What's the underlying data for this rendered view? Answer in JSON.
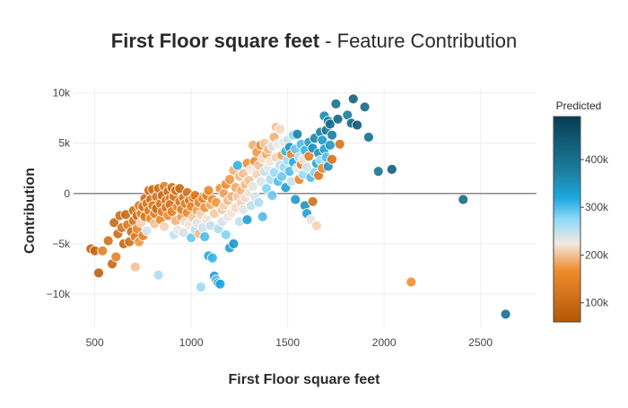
{
  "chart_data": {
    "type": "scatter",
    "title_bold": "First Floor square feet",
    "title_rest": " - Feature Contribution",
    "xlabel": "First Floor square feet",
    "ylabel": "Contribution",
    "xlim": [
      390,
      2790
    ],
    "ylim": [
      -13300,
      10500
    ],
    "x_ticks": [
      500,
      1000,
      1500,
      2000,
      2500
    ],
    "x_tick_labels": [
      "500",
      "1000",
      "1500",
      "2000",
      "2500"
    ],
    "y_ticks": [
      10000,
      5000,
      0,
      -5000,
      -10000
    ],
    "y_tick_labels": [
      "10k",
      "5k",
      "0",
      "−5k",
      "−10k"
    ],
    "zero_line": true,
    "grid": true,
    "colorbar": {
      "title": "Predicted",
      "range": [
        60000,
        490000
      ],
      "ticks": [
        100000,
        200000,
        300000,
        400000
      ],
      "tick_labels": [
        "100k",
        "200k",
        "300k",
        "400k"
      ],
      "stops": [
        {
          "offset": 0.0,
          "color": "#b35806"
        },
        {
          "offset": 0.25,
          "color": "#f08b2c"
        },
        {
          "offset": 0.38,
          "color": "#f4e8e0"
        },
        {
          "offset": 0.5,
          "color": "#90d8f8"
        },
        {
          "offset": 0.6,
          "color": "#1fa9df"
        },
        {
          "offset": 0.75,
          "color": "#1a7a9a"
        },
        {
          "offset": 1.0,
          "color": "#083d54"
        }
      ]
    },
    "points": [
      {
        "x": 480,
        "y": -5500,
        "c": 85000
      },
      {
        "x": 500,
        "y": -5700,
        "c": 90000
      },
      {
        "x": 520,
        "y": -7900,
        "c": 80000
      },
      {
        "x": 540,
        "y": -5700,
        "c": 145000
      },
      {
        "x": 570,
        "y": -4700,
        "c": 110000
      },
      {
        "x": 590,
        "y": -7000,
        "c": 95000
      },
      {
        "x": 600,
        "y": -2900,
        "c": 95000
      },
      {
        "x": 610,
        "y": -6300,
        "c": 150000
      },
      {
        "x": 620,
        "y": -4000,
        "c": 100000
      },
      {
        "x": 630,
        "y": -2200,
        "c": 105000
      },
      {
        "x": 640,
        "y": -3400,
        "c": 120000
      },
      {
        "x": 650,
        "y": -5000,
        "c": 90000
      },
      {
        "x": 660,
        "y": -2100,
        "c": 95000
      },
      {
        "x": 670,
        "y": -3100,
        "c": 130000
      },
      {
        "x": 680,
        "y": -4800,
        "c": 110000
      },
      {
        "x": 690,
        "y": -3800,
        "c": 100000
      },
      {
        "x": 700,
        "y": -1700,
        "c": 115000
      },
      {
        "x": 700,
        "y": -2700,
        "c": 120000
      },
      {
        "x": 710,
        "y": -4300,
        "c": 125000
      },
      {
        "x": 710,
        "y": -7300,
        "c": 200000
      },
      {
        "x": 720,
        "y": -3500,
        "c": 160000
      },
      {
        "x": 720,
        "y": -2200,
        "c": 100000
      },
      {
        "x": 730,
        "y": -1200,
        "c": 135000
      },
      {
        "x": 730,
        "y": -4800,
        "c": 175000
      },
      {
        "x": 740,
        "y": -2000,
        "c": 150000
      },
      {
        "x": 740,
        "y": -2900,
        "c": 210000
      },
      {
        "x": 750,
        "y": -1300,
        "c": 115000
      },
      {
        "x": 750,
        "y": -4200,
        "c": 140000
      },
      {
        "x": 760,
        "y": -500,
        "c": 100000
      },
      {
        "x": 760,
        "y": -2300,
        "c": 125000
      },
      {
        "x": 770,
        "y": -1000,
        "c": 130000
      },
      {
        "x": 770,
        "y": -3700,
        "c": 240000
      },
      {
        "x": 780,
        "y": 300,
        "c": 95000
      },
      {
        "x": 780,
        "y": -1700,
        "c": 120000
      },
      {
        "x": 790,
        "y": -2500,
        "c": 160000
      },
      {
        "x": 790,
        "y": -600,
        "c": 110000
      },
      {
        "x": 800,
        "y": 400,
        "c": 105000
      },
      {
        "x": 800,
        "y": -1200,
        "c": 135000
      },
      {
        "x": 810,
        "y": -3000,
        "c": 200000
      },
      {
        "x": 810,
        "y": -2000,
        "c": 145000
      },
      {
        "x": 820,
        "y": -300,
        "c": 125000
      },
      {
        "x": 820,
        "y": -1500,
        "c": 100000
      },
      {
        "x": 830,
        "y": -8100,
        "c": 260000
      },
      {
        "x": 830,
        "y": 500,
        "c": 110000
      },
      {
        "x": 840,
        "y": -1000,
        "c": 120000
      },
      {
        "x": 840,
        "y": -2600,
        "c": 155000
      },
      {
        "x": 850,
        "y": -200,
        "c": 95000
      },
      {
        "x": 850,
        "y": -1800,
        "c": 130000
      },
      {
        "x": 860,
        "y": 700,
        "c": 140000
      },
      {
        "x": 860,
        "y": -3300,
        "c": 210000
      },
      {
        "x": 870,
        "y": -700,
        "c": 115000
      },
      {
        "x": 870,
        "y": -1400,
        "c": 125000
      },
      {
        "x": 880,
        "y": 200,
        "c": 100000
      },
      {
        "x": 880,
        "y": -2200,
        "c": 165000
      },
      {
        "x": 890,
        "y": -500,
        "c": 135000
      },
      {
        "x": 890,
        "y": -1100,
        "c": 120000
      },
      {
        "x": 900,
        "y": 600,
        "c": 110000
      },
      {
        "x": 900,
        "y": -1800,
        "c": 150000
      },
      {
        "x": 910,
        "y": -4100,
        "c": 250000
      },
      {
        "x": 910,
        "y": -300,
        "c": 130000
      },
      {
        "x": 920,
        "y": -2700,
        "c": 190000
      },
      {
        "x": 920,
        "y": 300,
        "c": 120000
      },
      {
        "x": 930,
        "y": -1300,
        "c": 140000
      },
      {
        "x": 930,
        "y": -3600,
        "c": 230000
      },
      {
        "x": 940,
        "y": -800,
        "c": 125000
      },
      {
        "x": 940,
        "y": 500,
        "c": 100000
      },
      {
        "x": 950,
        "y": -2300,
        "c": 175000
      },
      {
        "x": 950,
        "y": -1600,
        "c": 145000
      },
      {
        "x": 960,
        "y": -400,
        "c": 115000
      },
      {
        "x": 960,
        "y": -3900,
        "c": 240000
      },
      {
        "x": 970,
        "y": -1000,
        "c": 135000
      },
      {
        "x": 970,
        "y": -2800,
        "c": 215000
      },
      {
        "x": 980,
        "y": 100,
        "c": 110000
      },
      {
        "x": 980,
        "y": -1900,
        "c": 160000
      },
      {
        "x": 990,
        "y": -700,
        "c": 130000
      },
      {
        "x": 990,
        "y": -3100,
        "c": 220000
      },
      {
        "x": 1000,
        "y": -1300,
        "c": 150000
      },
      {
        "x": 1000,
        "y": -4400,
        "c": 290000
      },
      {
        "x": 1010,
        "y": -400,
        "c": 140000
      },
      {
        "x": 1010,
        "y": -2400,
        "c": 200000
      },
      {
        "x": 1020,
        "y": -3600,
        "c": 255000
      },
      {
        "x": 1020,
        "y": -200,
        "c": 125000
      },
      {
        "x": 1030,
        "y": -1700,
        "c": 180000
      },
      {
        "x": 1030,
        "y": -2900,
        "c": 235000
      },
      {
        "x": 1040,
        "y": -900,
        "c": 145000
      },
      {
        "x": 1040,
        "y": -4000,
        "c": 195000
      },
      {
        "x": 1050,
        "y": -9300,
        "c": 270000
      },
      {
        "x": 1050,
        "y": -2100,
        "c": 210000
      },
      {
        "x": 1060,
        "y": -500,
        "c": 155000
      },
      {
        "x": 1060,
        "y": -3400,
        "c": 245000
      },
      {
        "x": 1070,
        "y": -1400,
        "c": 170000
      },
      {
        "x": 1070,
        "y": -4300,
        "c": 300000
      },
      {
        "x": 1080,
        "y": -200,
        "c": 150000
      },
      {
        "x": 1080,
        "y": -2600,
        "c": 220000
      },
      {
        "x": 1090,
        "y": -6200,
        "c": 320000
      },
      {
        "x": 1090,
        "y": 300,
        "c": 160000
      },
      {
        "x": 1100,
        "y": -1100,
        "c": 185000
      },
      {
        "x": 1100,
        "y": -3200,
        "c": 250000
      },
      {
        "x": 1110,
        "y": -6400,
        "c": 310000
      },
      {
        "x": 1110,
        "y": -600,
        "c": 165000
      },
      {
        "x": 1120,
        "y": -8200,
        "c": 330000
      },
      {
        "x": 1120,
        "y": -2000,
        "c": 205000
      },
      {
        "x": 1130,
        "y": -8600,
        "c": 300000
      },
      {
        "x": 1130,
        "y": -900,
        "c": 175000
      },
      {
        "x": 1140,
        "y": -8900,
        "c": 340000
      },
      {
        "x": 1140,
        "y": -3500,
        "c": 260000
      },
      {
        "x": 1150,
        "y": -9000,
        "c": 320000
      },
      {
        "x": 1150,
        "y": 500,
        "c": 170000
      },
      {
        "x": 1160,
        "y": -1600,
        "c": 200000
      },
      {
        "x": 1160,
        "y": -2800,
        "c": 240000
      },
      {
        "x": 1170,
        "y": 0,
        "c": 180000
      },
      {
        "x": 1170,
        "y": -1200,
        "c": 210000
      },
      {
        "x": 1180,
        "y": -4100,
        "c": 280000
      },
      {
        "x": 1180,
        "y": 900,
        "c": 165000
      },
      {
        "x": 1190,
        "y": -700,
        "c": 195000
      },
      {
        "x": 1190,
        "y": -2300,
        "c": 230000
      },
      {
        "x": 1200,
        "y": -5400,
        "c": 330000
      },
      {
        "x": 1200,
        "y": 1400,
        "c": 175000
      },
      {
        "x": 1210,
        "y": -300,
        "c": 190000
      },
      {
        "x": 1210,
        "y": -1900,
        "c": 220000
      },
      {
        "x": 1220,
        "y": 2300,
        "c": 190000
      },
      {
        "x": 1220,
        "y": -5000,
        "c": 340000
      },
      {
        "x": 1230,
        "y": 600,
        "c": 185000
      },
      {
        "x": 1230,
        "y": -1400,
        "c": 215000
      },
      {
        "x": 1240,
        "y": 2800,
        "c": 310000
      },
      {
        "x": 1240,
        "y": -300,
        "c": 205000
      },
      {
        "x": 1250,
        "y": 1700,
        "c": 195000
      },
      {
        "x": 1250,
        "y": -2800,
        "c": 250000
      },
      {
        "x": 1260,
        "y": 300,
        "c": 190000
      },
      {
        "x": 1260,
        "y": -900,
        "c": 210000
      },
      {
        "x": 1270,
        "y": 2000,
        "c": 200000
      },
      {
        "x": 1270,
        "y": -1600,
        "c": 235000
      },
      {
        "x": 1280,
        "y": 900,
        "c": 195000
      },
      {
        "x": 1280,
        "y": -400,
        "c": 215000
      },
      {
        "x": 1290,
        "y": 3000,
        "c": 170000
      },
      {
        "x": 1290,
        "y": -2600,
        "c": 330000
      },
      {
        "x": 1300,
        "y": 1300,
        "c": 200000
      },
      {
        "x": 1300,
        "y": 100,
        "c": 220000
      },
      {
        "x": 1310,
        "y": 2400,
        "c": 225000
      },
      {
        "x": 1310,
        "y": -1200,
        "c": 250000
      },
      {
        "x": 1320,
        "y": 4800,
        "c": 190000
      },
      {
        "x": 1320,
        "y": 700,
        "c": 230000
      },
      {
        "x": 1330,
        "y": 3200,
        "c": 165000
      },
      {
        "x": 1330,
        "y": -300,
        "c": 240000
      },
      {
        "x": 1340,
        "y": 1900,
        "c": 210000
      },
      {
        "x": 1340,
        "y": 4100,
        "c": 175000
      },
      {
        "x": 1350,
        "y": 2800,
        "c": 200000
      },
      {
        "x": 1350,
        "y": -900,
        "c": 260000
      },
      {
        "x": 1360,
        "y": 4800,
        "c": 160000
      },
      {
        "x": 1360,
        "y": 1200,
        "c": 235000
      },
      {
        "x": 1370,
        "y": 3500,
        "c": 215000
      },
      {
        "x": 1370,
        "y": -2300,
        "c": 300000
      },
      {
        "x": 1380,
        "y": 2200,
        "c": 250000
      },
      {
        "x": 1380,
        "y": 5000,
        "c": 205000
      },
      {
        "x": 1390,
        "y": 3900,
        "c": 185000
      },
      {
        "x": 1390,
        "y": 500,
        "c": 280000
      },
      {
        "x": 1400,
        "y": 2600,
        "c": 230000
      },
      {
        "x": 1400,
        "y": 4400,
        "c": 195000
      },
      {
        "x": 1410,
        "y": 1400,
        "c": 260000
      },
      {
        "x": 1410,
        "y": 3200,
        "c": 220000
      },
      {
        "x": 1420,
        "y": -200,
        "c": 290000
      },
      {
        "x": 1420,
        "y": 4700,
        "c": 240000
      },
      {
        "x": 1430,
        "y": 2100,
        "c": 270000
      },
      {
        "x": 1430,
        "y": 5600,
        "c": 190000
      },
      {
        "x": 1440,
        "y": 3600,
        "c": 210000
      },
      {
        "x": 1440,
        "y": 6600,
        "c": 200000
      },
      {
        "x": 1450,
        "y": 1200,
        "c": 300000
      },
      {
        "x": 1450,
        "y": 4900,
        "c": 225000
      },
      {
        "x": 1460,
        "y": 2800,
        "c": 255000
      },
      {
        "x": 1460,
        "y": 6400,
        "c": 215000
      },
      {
        "x": 1470,
        "y": 3800,
        "c": 180000
      },
      {
        "x": 1470,
        "y": 1700,
        "c": 290000
      },
      {
        "x": 1480,
        "y": 5100,
        "c": 235000
      },
      {
        "x": 1480,
        "y": 2600,
        "c": 265000
      },
      {
        "x": 1490,
        "y": 4200,
        "c": 310000
      },
      {
        "x": 1490,
        "y": 600,
        "c": 330000
      },
      {
        "x": 1500,
        "y": 3300,
        "c": 270000
      },
      {
        "x": 1500,
        "y": 5300,
        "c": 245000
      },
      {
        "x": 1510,
        "y": 2200,
        "c": 300000
      },
      {
        "x": 1510,
        "y": 4600,
        "c": 350000
      },
      {
        "x": 1520,
        "y": 1200,
        "c": 250000
      },
      {
        "x": 1520,
        "y": 3900,
        "c": 150000
      },
      {
        "x": 1530,
        "y": 5800,
        "c": 280000
      },
      {
        "x": 1530,
        "y": 3100,
        "c": 320000
      },
      {
        "x": 1540,
        "y": -600,
        "c": 340000
      },
      {
        "x": 1540,
        "y": 4400,
        "c": 290000
      },
      {
        "x": 1550,
        "y": 2500,
        "c": 230000
      },
      {
        "x": 1550,
        "y": 5900,
        "c": 370000
      },
      {
        "x": 1560,
        "y": 1400,
        "c": 155000
      },
      {
        "x": 1560,
        "y": 3600,
        "c": 260000
      },
      {
        "x": 1570,
        "y": 4900,
        "c": 300000
      },
      {
        "x": 1570,
        "y": 2900,
        "c": 140000
      },
      {
        "x": 1580,
        "y": 1900,
        "c": 270000
      },
      {
        "x": 1580,
        "y": 3400,
        "c": 220000
      },
      {
        "x": 1590,
        "y": 4300,
        "c": 310000
      },
      {
        "x": 1590,
        "y": -1200,
        "c": 350000
      },
      {
        "x": 1600,
        "y": -2000,
        "c": 330000
      },
      {
        "x": 1600,
        "y": 2600,
        "c": 245000
      },
      {
        "x": 1610,
        "y": 3700,
        "c": 140000
      },
      {
        "x": 1610,
        "y": 5100,
        "c": 340000
      },
      {
        "x": 1620,
        "y": -2600,
        "c": 230000
      },
      {
        "x": 1620,
        "y": 1600,
        "c": 300000
      },
      {
        "x": 1630,
        "y": -800,
        "c": 110000
      },
      {
        "x": 1630,
        "y": 4500,
        "c": 360000
      },
      {
        "x": 1640,
        "y": 2100,
        "c": 280000
      },
      {
        "x": 1640,
        "y": 5500,
        "c": 370000
      },
      {
        "x": 1650,
        "y": 3000,
        "c": 320000
      },
      {
        "x": 1650,
        "y": -3200,
        "c": 210000
      },
      {
        "x": 1660,
        "y": 4000,
        "c": 350000
      },
      {
        "x": 1660,
        "y": 1800,
        "c": 130000
      },
      {
        "x": 1670,
        "y": 6100,
        "c": 380000
      },
      {
        "x": 1670,
        "y": 3300,
        "c": 270000
      },
      {
        "x": 1680,
        "y": 5300,
        "c": 340000
      },
      {
        "x": 1680,
        "y": 2500,
        "c": 160000
      },
      {
        "x": 1690,
        "y": 7700,
        "c": 360000
      },
      {
        "x": 1690,
        "y": 4400,
        "c": 330000
      },
      {
        "x": 1700,
        "y": 6300,
        "c": 390000
      },
      {
        "x": 1700,
        "y": 3600,
        "c": 300000
      },
      {
        "x": 1710,
        "y": 7200,
        "c": 370000
      },
      {
        "x": 1710,
        "y": 2700,
        "c": 350000
      },
      {
        "x": 1720,
        "y": 4800,
        "c": 340000
      },
      {
        "x": 1720,
        "y": 6900,
        "c": 410000
      },
      {
        "x": 1730,
        "y": 3400,
        "c": 120000
      },
      {
        "x": 1730,
        "y": 5800,
        "c": 380000
      },
      {
        "x": 1750,
        "y": 8900,
        "c": 400000
      },
      {
        "x": 1760,
        "y": 7400,
        "c": 420000
      },
      {
        "x": 1770,
        "y": 4900,
        "c": 120000
      },
      {
        "x": 1810,
        "y": 7800,
        "c": 380000
      },
      {
        "x": 1830,
        "y": 7000,
        "c": 420000
      },
      {
        "x": 1840,
        "y": 9400,
        "c": 430000
      },
      {
        "x": 1860,
        "y": 6800,
        "c": 440000
      },
      {
        "x": 1900,
        "y": 8600,
        "c": 410000
      },
      {
        "x": 1920,
        "y": 5600,
        "c": 400000
      },
      {
        "x": 1970,
        "y": 2200,
        "c": 390000
      },
      {
        "x": 2040,
        "y": 2400,
        "c": 430000
      },
      {
        "x": 2140,
        "y": -8800,
        "c": 170000
      },
      {
        "x": 2410,
        "y": -600,
        "c": 410000
      },
      {
        "x": 2630,
        "y": -12000,
        "c": 400000
      }
    ]
  }
}
